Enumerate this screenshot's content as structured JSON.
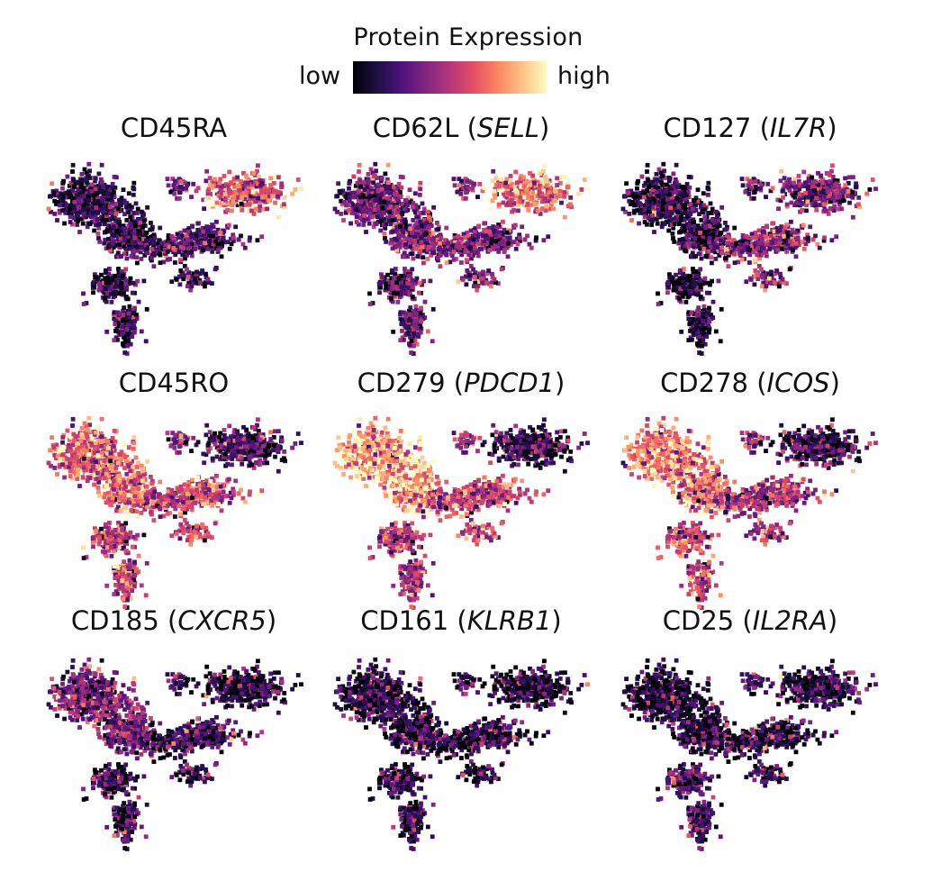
{
  "legend": {
    "title": "Protein Expression",
    "low_label": "low",
    "high_label": "high",
    "colormap": "magma",
    "colormap_stops": [
      "#000004",
      "#1c1044",
      "#4f127b",
      "#812581",
      "#b5367a",
      "#e55064",
      "#fb8761",
      "#fec287",
      "#fcfdbf"
    ]
  },
  "chart_data": {
    "type": "scatter",
    "layout": "3x3 grid of UMAP embeddings, points colored by protein expression",
    "axes": "hidden",
    "grid": false,
    "legend_placement": "top-center",
    "panels": [
      {
        "protein": "CD45RA",
        "gene": "",
        "pattern": "high in right lobe, low elsewhere"
      },
      {
        "protein": "CD62L",
        "gene": "SELL",
        "pattern": "high in right lobe, moderate elsewhere"
      },
      {
        "protein": "CD127",
        "gene": "IL7R",
        "pattern": "moderate in right/middle region, low in left"
      },
      {
        "protein": "CD45RO",
        "gene": "",
        "pattern": "high in left and middle, low in right lobe"
      },
      {
        "protein": "CD279",
        "gene": "PDCD1",
        "pattern": "very high in left lobe, low in right lobe"
      },
      {
        "protein": "CD278",
        "gene": "ICOS",
        "pattern": "high in left lobe, low in right lobe"
      },
      {
        "protein": "CD185",
        "gene": "CXCR5",
        "pattern": "moderate in upper left, low elsewhere"
      },
      {
        "protein": "CD161",
        "gene": "KLRB1",
        "pattern": "low overall, sparse moderate points"
      },
      {
        "protein": "CD25",
        "gene": "IL2RA",
        "pattern": "low overall, sparse moderate points"
      }
    ]
  }
}
